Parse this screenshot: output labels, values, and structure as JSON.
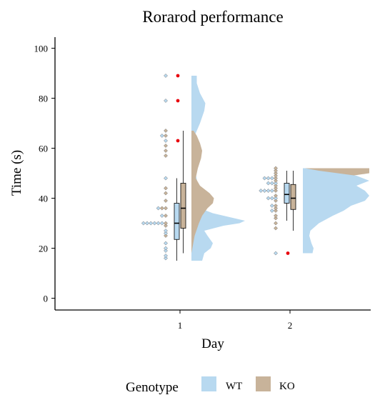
{
  "chart_data": {
    "type": "raincloud",
    "title": "Rorarod performance",
    "xlabel": "Day",
    "ylabel": "Time (s)",
    "categories": [
      "1",
      "2"
    ],
    "ylim": [
      0,
      100
    ],
    "yticks": [
      0,
      20,
      40,
      60,
      80,
      100
    ],
    "legend": {
      "title": "Genotype",
      "position": "bottom",
      "entries": [
        {
          "label": "WT",
          "color": "#b8d9f0"
        },
        {
          "label": "KO",
          "color": "#c8b39a"
        }
      ]
    },
    "outlier_color": "#e8000b",
    "series": [
      {
        "name": "WT",
        "color": "#b8d9f0",
        "points": {
          "1": [
            89,
            79,
            65,
            63,
            48,
            36,
            33,
            30,
            30,
            30,
            30,
            30,
            30,
            27,
            26,
            22,
            20,
            19,
            17,
            16
          ],
          "2": [
            48,
            48,
            48,
            46,
            46,
            46,
            43,
            43,
            43,
            43,
            40,
            40,
            40,
            37,
            35,
            18
          ]
        },
        "boxplot": {
          "1": {
            "q1": 23.5,
            "median": 30,
            "q3": 38,
            "whisker_low": 15,
            "whisker_high": 48
          },
          "2": {
            "q1": 38,
            "median": 41.5,
            "q3": 46,
            "whisker_low": 31,
            "whisker_high": 51
          }
        },
        "density": {
          "1": [
            [
              15,
              0.1
            ],
            [
              18,
              0.12
            ],
            [
              20,
              0.18
            ],
            [
              22,
              0.2
            ],
            [
              25,
              0.15
            ],
            [
              27,
              0.12
            ],
            [
              29,
              0.3
            ],
            [
              30,
              0.45
            ],
            [
              31,
              0.5
            ],
            [
              32,
              0.4
            ],
            [
              34,
              0.2
            ],
            [
              36,
              0.08
            ],
            [
              40,
              0.05
            ],
            [
              45,
              0.06
            ],
            [
              50,
              0.04
            ],
            [
              55,
              0.02
            ],
            [
              60,
              0.01
            ],
            [
              65,
              0.03
            ],
            [
              70,
              0.08
            ],
            [
              75,
              0.12
            ],
            [
              78,
              0.13
            ],
            [
              82,
              0.08
            ],
            [
              86,
              0.05
            ],
            [
              89,
              0.05
            ]
          ],
          "2": [
            [
              18,
              0.09
            ],
            [
              20,
              0.1
            ],
            [
              22,
              0.08
            ],
            [
              25,
              0.06
            ],
            [
              27,
              0.07
            ],
            [
              30,
              0.15
            ],
            [
              33,
              0.28
            ],
            [
              35,
              0.38
            ],
            [
              37,
              0.45
            ],
            [
              39,
              0.58
            ],
            [
              41,
              0.62
            ],
            [
              43,
              0.58
            ],
            [
              45,
              0.5
            ],
            [
              47,
              0.62
            ],
            [
              49,
              0.5
            ],
            [
              51,
              0.15
            ],
            [
              52,
              0.02
            ]
          ]
        }
      },
      {
        "name": "KO",
        "color": "#c8b39a",
        "points": {
          "1": [
            67,
            65,
            61,
            59,
            57,
            44,
            42,
            39,
            36,
            36,
            33,
            30,
            29,
            25
          ],
          "2": [
            52,
            51,
            50,
            49,
            48,
            47,
            45,
            44,
            43,
            41,
            39,
            37,
            36,
            35,
            33,
            32,
            30,
            28
          ]
        },
        "outliers": {
          "1": [
            89,
            79,
            63
          ],
          "2": [
            18
          ]
        },
        "boxplot": {
          "1": {
            "q1": 28,
            "median": 36,
            "q3": 46,
            "whisker_low": 18,
            "whisker_high": 67
          },
          "2": {
            "q1": 35.5,
            "median": 40,
            "q3": 45.5,
            "whisker_low": 27,
            "whisker_high": 51
          }
        },
        "density": {
          "1": [
            [
              18,
              0.0
            ],
            [
              25,
              0.03
            ],
            [
              30,
              0.07
            ],
            [
              33,
              0.1
            ],
            [
              36,
              0.15
            ],
            [
              38,
              0.2
            ],
            [
              40,
              0.21
            ],
            [
              42,
              0.17
            ],
            [
              45,
              0.08
            ],
            [
              48,
              0.04
            ],
            [
              52,
              0.06
            ],
            [
              56,
              0.09
            ],
            [
              59,
              0.1
            ],
            [
              62,
              0.08
            ],
            [
              65,
              0.05
            ],
            [
              67,
              0.02
            ]
          ],
          "2": [
            [
              27,
              0.0
            ],
            [
              28,
              0.08
            ],
            [
              30,
              0.1
            ],
            [
              32,
              0.12
            ],
            [
              34,
              0.15
            ],
            [
              36,
              0.15
            ],
            [
              38,
              0.14
            ],
            [
              40,
              0.13
            ],
            [
              42,
              0.1
            ],
            [
              44,
              0.07
            ],
            [
              46,
              0.05
            ],
            [
              48,
              0.3
            ],
            [
              50,
              0.62
            ],
            [
              52,
              0.62
            ]
          ]
        }
      }
    ]
  }
}
